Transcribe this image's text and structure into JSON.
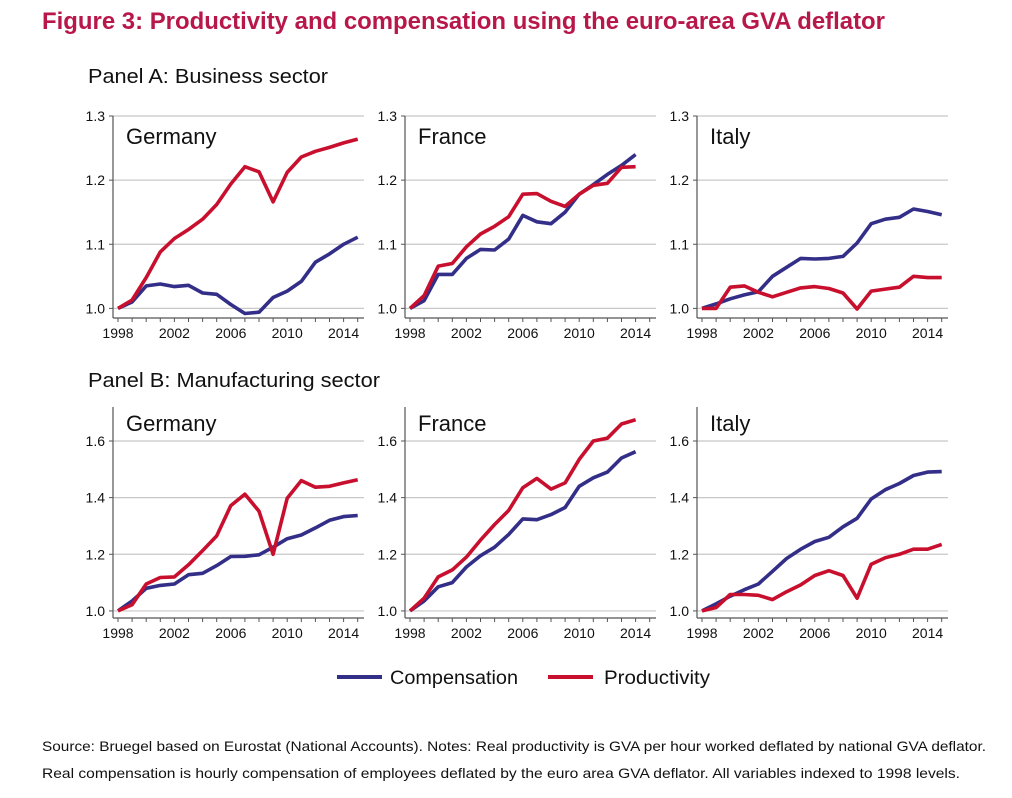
{
  "figure_title": "Figure 3: Productivity and compensation using the euro-area GVA deflator",
  "colors": {
    "title": "#b8174a",
    "compensation": "#332e87",
    "productivity": "#c8102e",
    "grid": "#c8c8c8"
  },
  "panel_a_title": "Panel A: Business sector",
  "panel_b_title": "Panel B: Manufacturing sector",
  "legend": [
    {
      "label": "Compensation",
      "color": "#332e87"
    },
    {
      "label": "Productivity",
      "color": "#c8102e"
    }
  ],
  "source_line_1": "Source: Bruegel based on Eurostat (National Accounts). Notes: Real productivity is GVA per hour worked deflated by national GVA deflator.",
  "source_line_2": "Real compensation is hourly compensation of employees deflated by the euro area GVA deflator. All variables indexed to 1998 levels.",
  "chart_data": [
    {
      "type": "line",
      "panel": "Panel A: Business sector",
      "title": "Germany",
      "ylim": [
        0.985,
        1.3
      ],
      "yticks": [
        "1.0",
        "1.1",
        "1.2",
        "1.3"
      ],
      "xticks": [
        "1998",
        "2002",
        "2006",
        "2010",
        "2014"
      ],
      "grid": true,
      "x": [
        1998,
        1999,
        2000,
        2001,
        2002,
        2003,
        2004,
        2005,
        2006,
        2007,
        2008,
        2009,
        2010,
        2011,
        2012,
        2013,
        2014,
        2015
      ],
      "series": [
        {
          "name": "Compensation",
          "values": [
            1.0,
            1.01,
            1.035,
            1.038,
            1.034,
            1.036,
            1.024,
            1.022,
            1.006,
            0.992,
            0.994,
            1.017,
            1.027,
            1.042,
            1.072,
            1.085,
            1.1,
            1.111
          ]
        },
        {
          "name": "Productivity",
          "values": [
            1.0,
            1.013,
            1.048,
            1.088,
            1.109,
            1.123,
            1.139,
            1.162,
            1.194,
            1.221,
            1.213,
            1.166,
            1.212,
            1.236,
            1.245,
            1.251,
            1.258,
            1.264
          ]
        }
      ]
    },
    {
      "type": "line",
      "panel": "Panel A: Business sector",
      "title": "France",
      "ylim": [
        0.985,
        1.3
      ],
      "yticks": [
        "1.0",
        "1.1",
        "1.2",
        "1.3"
      ],
      "xticks": [
        "1998",
        "2002",
        "2006",
        "2010",
        "2014"
      ],
      "grid": true,
      "x": [
        1998,
        1999,
        2000,
        2001,
        2002,
        2003,
        2004,
        2005,
        2006,
        2007,
        2008,
        2009,
        2010,
        2011,
        2012,
        2013,
        2014
      ],
      "series": [
        {
          "name": "Compensation",
          "values": [
            1.0,
            1.012,
            1.053,
            1.053,
            1.078,
            1.092,
            1.091,
            1.108,
            1.145,
            1.135,
            1.132,
            1.15,
            1.178,
            1.193,
            1.209,
            1.223,
            1.24
          ]
        },
        {
          "name": "Productivity",
          "values": [
            1.0,
            1.02,
            1.066,
            1.07,
            1.096,
            1.116,
            1.128,
            1.143,
            1.178,
            1.179,
            1.167,
            1.159,
            1.178,
            1.192,
            1.195,
            1.22,
            1.221
          ]
        }
      ]
    },
    {
      "type": "line",
      "panel": "Panel A: Business sector",
      "title": "Italy",
      "ylim": [
        0.985,
        1.3
      ],
      "yticks": [
        "1.0",
        "1.1",
        "1.2",
        "1.3"
      ],
      "xticks": [
        "1998",
        "2002",
        "2006",
        "2010",
        "2014"
      ],
      "grid": true,
      "x": [
        1998,
        1999,
        2000,
        2001,
        2002,
        2003,
        2004,
        2005,
        2006,
        2007,
        2008,
        2009,
        2010,
        2011,
        2012,
        2013,
        2014,
        2015
      ],
      "series": [
        {
          "name": "Compensation",
          "values": [
            1.0,
            1.007,
            1.015,
            1.021,
            1.026,
            1.05,
            1.064,
            1.078,
            1.077,
            1.078,
            1.081,
            1.102,
            1.132,
            1.139,
            1.142,
            1.155,
            1.151,
            1.146
          ]
        },
        {
          "name": "Productivity",
          "values": [
            1.0,
            1.0,
            1.033,
            1.035,
            1.025,
            1.018,
            1.025,
            1.032,
            1.034,
            1.031,
            1.024,
            0.999,
            1.027,
            1.03,
            1.033,
            1.05,
            1.048,
            1.048
          ]
        }
      ]
    },
    {
      "type": "line",
      "panel": "Panel B: Manufacturing sector",
      "title": "Germany",
      "ylim": [
        0.975,
        1.72
      ],
      "yticks": [
        "1.0",
        "1.2",
        "1.4",
        "1.6"
      ],
      "xticks": [
        "1998",
        "2002",
        "2006",
        "2010",
        "2014"
      ],
      "grid": true,
      "x": [
        1998,
        1999,
        2000,
        2001,
        2002,
        2003,
        2004,
        2005,
        2006,
        2007,
        2008,
        2009,
        2010,
        2011,
        2012,
        2013,
        2014,
        2015
      ],
      "series": [
        {
          "name": "Compensation",
          "values": [
            1.0,
            1.035,
            1.08,
            1.09,
            1.095,
            1.128,
            1.133,
            1.16,
            1.192,
            1.193,
            1.198,
            1.225,
            1.255,
            1.268,
            1.293,
            1.32,
            1.333,
            1.337
          ]
        },
        {
          "name": "Productivity",
          "values": [
            1.0,
            1.022,
            1.095,
            1.118,
            1.12,
            1.163,
            1.213,
            1.265,
            1.372,
            1.412,
            1.352,
            1.2,
            1.398,
            1.46,
            1.437,
            1.44,
            1.452,
            1.463
          ]
        }
      ]
    },
    {
      "type": "line",
      "panel": "Panel B: Manufacturing sector",
      "title": "France",
      "ylim": [
        0.975,
        1.72
      ],
      "yticks": [
        "1.0",
        "1.2",
        "1.4",
        "1.6"
      ],
      "xticks": [
        "1998",
        "2002",
        "2006",
        "2010",
        "2014"
      ],
      "grid": true,
      "x": [
        1998,
        1999,
        2000,
        2001,
        2002,
        2003,
        2004,
        2005,
        2006,
        2007,
        2008,
        2009,
        2010,
        2011,
        2012,
        2013,
        2014
      ],
      "series": [
        {
          "name": "Compensation",
          "values": [
            1.0,
            1.035,
            1.085,
            1.1,
            1.155,
            1.195,
            1.225,
            1.27,
            1.325,
            1.322,
            1.34,
            1.365,
            1.44,
            1.47,
            1.49,
            1.54,
            1.562
          ]
        },
        {
          "name": "Productivity",
          "values": [
            1.0,
            1.045,
            1.12,
            1.145,
            1.19,
            1.25,
            1.305,
            1.355,
            1.435,
            1.468,
            1.43,
            1.452,
            1.535,
            1.6,
            1.61,
            1.66,
            1.675
          ]
        }
      ]
    },
    {
      "type": "line",
      "panel": "Panel B: Manufacturing sector",
      "title": "Italy",
      "ylim": [
        0.975,
        1.72
      ],
      "yticks": [
        "1.0",
        "1.2",
        "1.4",
        "1.6"
      ],
      "xticks": [
        "1998",
        "2002",
        "2006",
        "2010",
        "2014"
      ],
      "grid": true,
      "x": [
        1998,
        1999,
        2000,
        2001,
        2002,
        2003,
        2004,
        2005,
        2006,
        2007,
        2008,
        2009,
        2010,
        2011,
        2012,
        2013,
        2014,
        2015
      ],
      "series": [
        {
          "name": "Compensation",
          "values": [
            1.0,
            1.025,
            1.052,
            1.075,
            1.095,
            1.14,
            1.185,
            1.218,
            1.245,
            1.26,
            1.297,
            1.327,
            1.395,
            1.428,
            1.45,
            1.478,
            1.49,
            1.492
          ]
        },
        {
          "name": "Productivity",
          "values": [
            1.0,
            1.012,
            1.058,
            1.058,
            1.055,
            1.04,
            1.068,
            1.092,
            1.125,
            1.142,
            1.125,
            1.045,
            1.165,
            1.188,
            1.2,
            1.218,
            1.218,
            1.235
          ]
        }
      ]
    }
  ]
}
